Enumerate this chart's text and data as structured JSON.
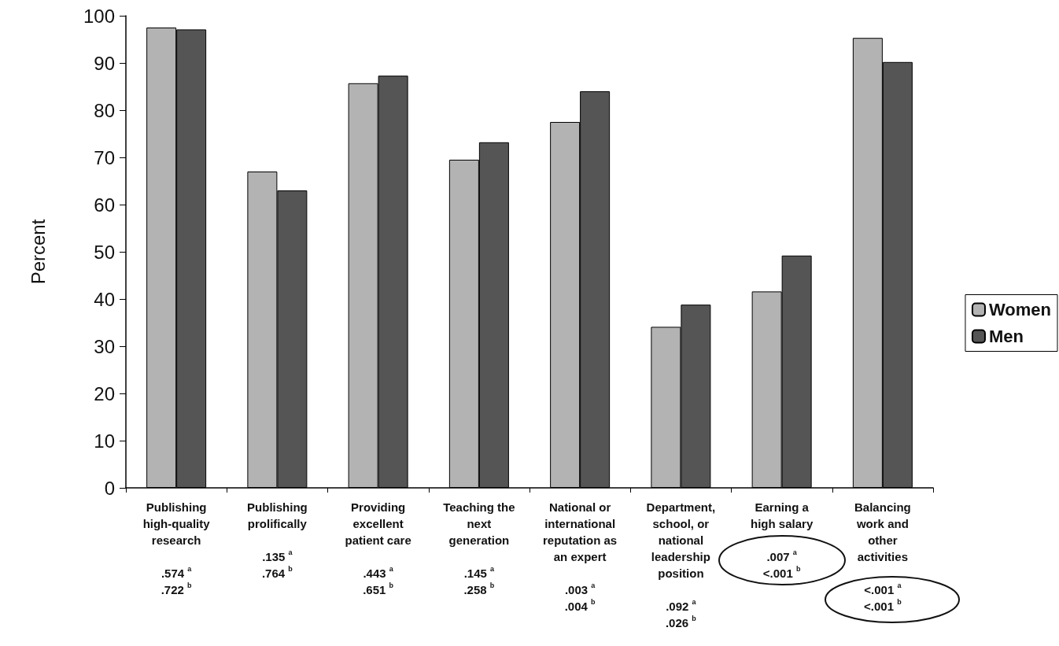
{
  "chart_data": {
    "type": "bar",
    "ylabel": "Percent",
    "categories": [
      "Publishing\nhigh-quality\nresearch\n\n.574 $^{a}$\n.722 $^{b}$",
      "Publishing\nprolifically\n\n.135 $^{a}$\n.764 $^{b}$",
      "Providing\nexcellent\npatient care\n\n.443 $^{a}$\n.651 $^{b}$",
      "Teaching the\nnext\ngeneration\n\n.145 $^{a}$\n.258 $^{b}$",
      "National or\ninternational\nreputation as\nan expert\n\n.003 $^{a}$\n.004 $^{b}$",
      "Department,\nschool, or\nnational\nleadership\nposition\n\n.092 $^{a}$\n.026 $^{b}$",
      "Earning a\nhigh salary\n\n.007 $^{a}$\n<.001 $^{b}$",
      "Balancing\nwork and\nother\nactivities\n\n<.001 $^{a}$\n<.001 $^{b}$"
    ],
    "series": [
      {
        "name": "Women",
        "color": "#b3b3b3",
        "values": [
          97.5,
          67.0,
          85.7,
          69.5,
          77.5,
          34.1,
          41.6,
          95.3
        ]
      },
      {
        "name": "Men",
        "color": "#555555",
        "values": [
          97.1,
          63.0,
          87.3,
          73.2,
          84.0,
          38.8,
          49.2,
          90.2
        ]
      }
    ],
    "ylim": [
      0,
      100
    ],
    "yticks": [
      0,
      10,
      20,
      30,
      40,
      50,
      60,
      70,
      80,
      90,
      100
    ],
    "grid": false,
    "legend": "right"
  }
}
